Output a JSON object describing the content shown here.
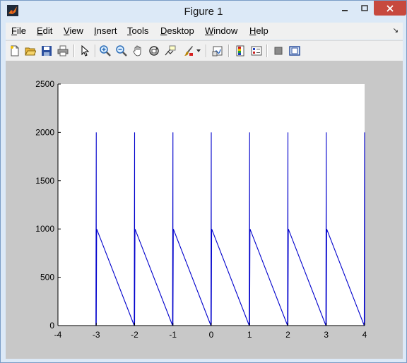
{
  "window": {
    "title": "Figure 1"
  },
  "menu": {
    "items": [
      {
        "key": "F",
        "rest": "ile"
      },
      {
        "key": "E",
        "rest": "dit"
      },
      {
        "key": "V",
        "rest": "iew"
      },
      {
        "key": "I",
        "rest": "nsert"
      },
      {
        "key": "T",
        "rest": "ools"
      },
      {
        "key": "D",
        "rest": "esktop"
      },
      {
        "key": "W",
        "rest": "indow"
      },
      {
        "key": "H",
        "rest": "elp"
      }
    ]
  },
  "toolbar": {
    "icons": [
      "new-figure-icon",
      "open-file-icon",
      "save-icon",
      "print-icon",
      "edit-plot-icon",
      "zoom-in-icon",
      "zoom-out-icon",
      "pan-icon",
      "rotate-3d-icon",
      "data-cursor-icon",
      "brush-icon",
      "link-plot-icon",
      "colorbar-icon",
      "legend-icon",
      "hide-plot-tools-icon",
      "show-plot-tools-icon"
    ]
  },
  "chart_data": {
    "type": "line",
    "xlim": [
      -4,
      4
    ],
    "ylim": [
      0,
      2500
    ],
    "xticks": [
      "-4",
      "-3",
      "-2",
      "-1",
      "0",
      "1",
      "2",
      "3",
      "4"
    ],
    "yticks": [
      "0",
      "500",
      "1000",
      "1500",
      "2000",
      "2500"
    ],
    "grid": false,
    "line_color": "#0000cc",
    "series": [
      {
        "x": [
          -4,
          -3.01,
          -3,
          -3,
          -2.99,
          -2.01,
          -2,
          -2,
          -1.99,
          -1.01,
          -1,
          -1,
          -0.99,
          -0.01,
          0,
          0,
          0.01,
          0.99,
          1,
          1,
          1.01,
          1.99,
          2,
          2,
          2.01,
          2.99,
          3,
          3,
          3.01,
          3.99,
          4,
          4
        ],
        "y": [
          0,
          0,
          2000,
          0,
          1000,
          0,
          2000,
          0,
          1000,
          0,
          2000,
          0,
          1000,
          0,
          2000,
          0,
          1000,
          0,
          2000,
          0,
          1000,
          0,
          2000,
          0,
          1000,
          0,
          2000,
          0,
          1000,
          0,
          2000,
          0
        ]
      }
    ]
  }
}
